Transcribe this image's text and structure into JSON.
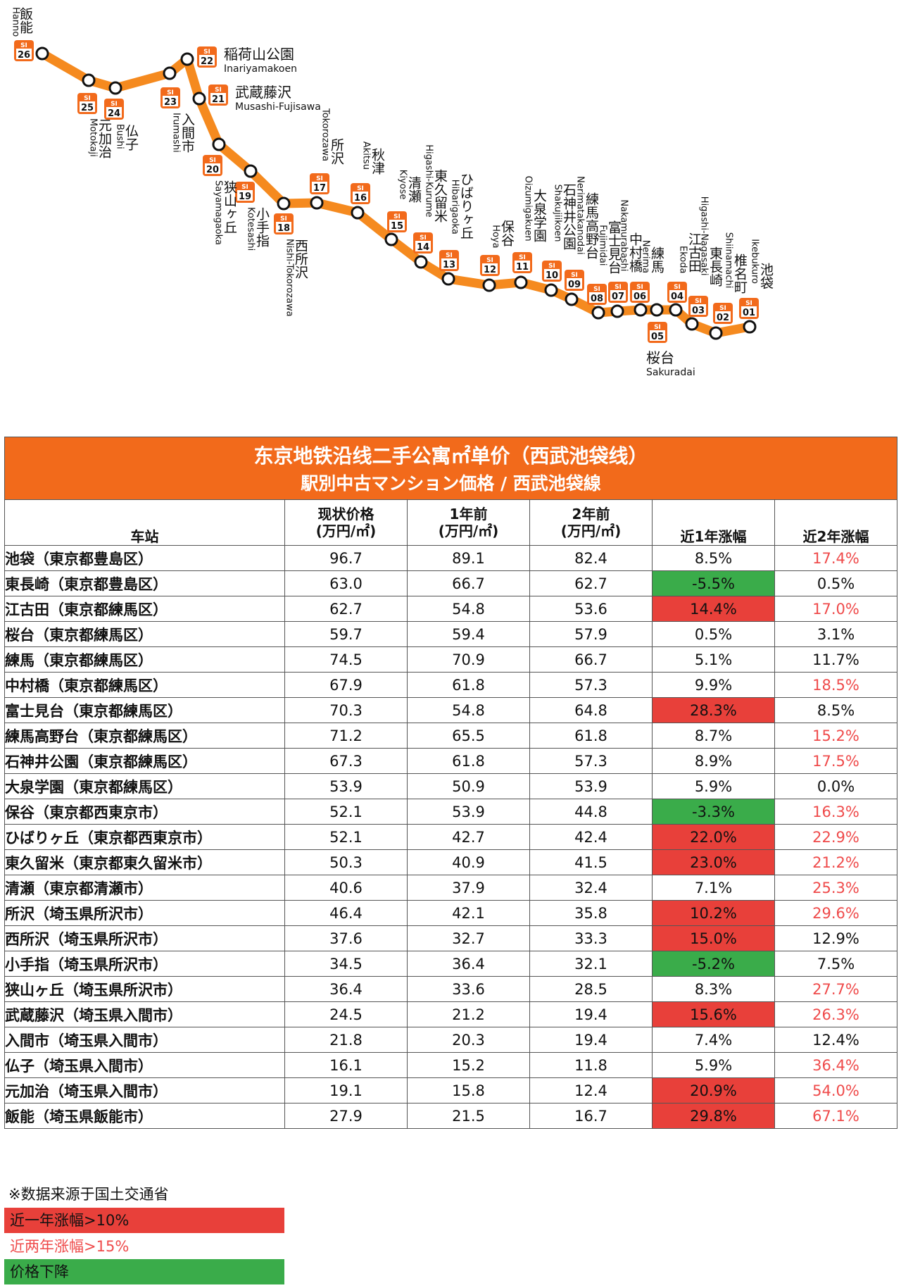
{
  "line_map": {
    "stations": [
      {
        "code": "SI",
        "num": "01",
        "name": "池袋",
        "romaji": "Ikebukuro"
      },
      {
        "code": "SI",
        "num": "02",
        "name": "椎名町",
        "romaji": "Shiinamachi"
      },
      {
        "code": "SI",
        "num": "03",
        "name": "東長崎",
        "romaji": "Higashi-Nagasaki"
      },
      {
        "code": "SI",
        "num": "04",
        "name": "江古田",
        "romaji": "Ekoda"
      },
      {
        "code": "SI",
        "num": "05",
        "name": "桜台",
        "romaji": "Sakuradai"
      },
      {
        "code": "SI",
        "num": "06",
        "name": "練馬",
        "romaji": "Nerima"
      },
      {
        "code": "SI",
        "num": "07",
        "name": "中村橋",
        "romaji": "Nakamurabashi"
      },
      {
        "code": "SI",
        "num": "08",
        "name": "富士見台",
        "romaji": "Fujimidai"
      },
      {
        "code": "SI",
        "num": "09",
        "name": "練馬高野台",
        "romaji": "Nerimatakanodai"
      },
      {
        "code": "SI",
        "num": "10",
        "name": "石神井公園",
        "romaji": "Shakujiikoen"
      },
      {
        "code": "SI",
        "num": "11",
        "name": "大泉学園",
        "romaji": "Oizumigakuen"
      },
      {
        "code": "SI",
        "num": "12",
        "name": "保谷",
        "romaji": "Hoya"
      },
      {
        "code": "SI",
        "num": "13",
        "name": "ひばりヶ丘",
        "romaji": "Hibarigaoka"
      },
      {
        "code": "SI",
        "num": "14",
        "name": "東久留米",
        "romaji": "Higashi-Kurume"
      },
      {
        "code": "SI",
        "num": "15",
        "name": "清瀬",
        "romaji": "Kiyose"
      },
      {
        "code": "SI",
        "num": "16",
        "name": "秋津",
        "romaji": "Akitsu"
      },
      {
        "code": "SI",
        "num": "17",
        "name": "所沢",
        "romaji": "Tokorozawa"
      },
      {
        "code": "SI",
        "num": "18",
        "name": "西所沢",
        "romaji": "Nishi-Tokorozawa"
      },
      {
        "code": "SI",
        "num": "19",
        "name": "小手指",
        "romaji": "Kotesashi"
      },
      {
        "code": "SI",
        "num": "20",
        "name": "狭山ヶ丘",
        "romaji": "Sayamagaoka"
      },
      {
        "code": "SI",
        "num": "21",
        "name": "武蔵藤沢",
        "romaji": "Musashi-Fujisawa"
      },
      {
        "code": "SI",
        "num": "22",
        "name": "稲荷山公園",
        "romaji": "Inariyamakoen"
      },
      {
        "code": "SI",
        "num": "23",
        "name": "入間市",
        "romaji": "Irumashi"
      },
      {
        "code": "SI",
        "num": "24",
        "name": "仏子",
        "romaji": "Bushi"
      },
      {
        "code": "SI",
        "num": "25",
        "name": "元加治",
        "romaji": "Motokaji"
      },
      {
        "code": "SI",
        "num": "26",
        "name": "飯能",
        "romaji": "Hanno"
      }
    ],
    "colors": {
      "line": "#f58a1f",
      "badge": "#f26a1b"
    }
  },
  "table": {
    "title_cn": "东京地铁沿线二手公寓㎡单价（西武池袋线）",
    "title_jp": "駅別中古マンション価格 / 西武池袋線",
    "headers": {
      "station": "车站",
      "current": "现状价格\n(万円/㎡)",
      "y1": "1年前\n(万円/㎡)",
      "y2": "2年前\n(万円/㎡)",
      "chg1": "近1年涨幅",
      "chg2": "近2年涨幅"
    },
    "rows": [
      {
        "station": "池袋（東京都豊島区）",
        "current": "96.7",
        "y1": "89.1",
        "y2": "82.4",
        "chg1": "8.5%",
        "chg2": "17.4%",
        "hl1": "none",
        "hl2": "red-text"
      },
      {
        "station": "東長崎（東京都豊島区）",
        "current": "63.0",
        "y1": "66.7",
        "y2": "62.7",
        "chg1": "-5.5%",
        "chg2": "0.5%",
        "hl1": "green",
        "hl2": "none"
      },
      {
        "station": "江古田（東京都練馬区）",
        "current": "62.7",
        "y1": "54.8",
        "y2": "53.6",
        "chg1": "14.4%",
        "chg2": "17.0%",
        "hl1": "red",
        "hl2": "red-text"
      },
      {
        "station": "桜台（東京都練馬区）",
        "current": "59.7",
        "y1": "59.4",
        "y2": "57.9",
        "chg1": "0.5%",
        "chg2": "3.1%",
        "hl1": "none",
        "hl2": "none"
      },
      {
        "station": "練馬（東京都練馬区）",
        "current": "74.5",
        "y1": "70.9",
        "y2": "66.7",
        "chg1": "5.1%",
        "chg2": "11.7%",
        "hl1": "none",
        "hl2": "none"
      },
      {
        "station": "中村橋（東京都練馬区）",
        "current": "67.9",
        "y1": "61.8",
        "y2": "57.3",
        "chg1": "9.9%",
        "chg2": "18.5%",
        "hl1": "none",
        "hl2": "red-text"
      },
      {
        "station": "富士見台（東京都練馬区）",
        "current": "70.3",
        "y1": "54.8",
        "y2": "64.8",
        "chg1": "28.3%",
        "chg2": "8.5%",
        "hl1": "red",
        "hl2": "none"
      },
      {
        "station": "練馬高野台（東京都練馬区）",
        "current": "71.2",
        "y1": "65.5",
        "y2": "61.8",
        "chg1": "8.7%",
        "chg2": "15.2%",
        "hl1": "none",
        "hl2": "red-text"
      },
      {
        "station": "石神井公園（東京都練馬区）",
        "current": "67.3",
        "y1": "61.8",
        "y2": "57.3",
        "chg1": "8.9%",
        "chg2": "17.5%",
        "hl1": "none",
        "hl2": "red-text"
      },
      {
        "station": "大泉学園（東京都練馬区）",
        "current": "53.9",
        "y1": "50.9",
        "y2": "53.9",
        "chg1": "5.9%",
        "chg2": "0.0%",
        "hl1": "none",
        "hl2": "none"
      },
      {
        "station": "保谷（東京都西東京市）",
        "current": "52.1",
        "y1": "53.9",
        "y2": "44.8",
        "chg1": "-3.3%",
        "chg2": "16.3%",
        "hl1": "green",
        "hl2": "red-text"
      },
      {
        "station": "ひばりヶ丘（東京都西東京市）",
        "current": "52.1",
        "y1": "42.7",
        "y2": "42.4",
        "chg1": "22.0%",
        "chg2": "22.9%",
        "hl1": "red",
        "hl2": "red-text"
      },
      {
        "station": "東久留米（東京都東久留米市）",
        "current": "50.3",
        "y1": "40.9",
        "y2": "41.5",
        "chg1": "23.0%",
        "chg2": "21.2%",
        "hl1": "red",
        "hl2": "red-text"
      },
      {
        "station": "清瀬（東京都清瀬市）",
        "current": "40.6",
        "y1": "37.9",
        "y2": "32.4",
        "chg1": "7.1%",
        "chg2": "25.3%",
        "hl1": "none",
        "hl2": "red-text"
      },
      {
        "station": "所沢（埼玉県所沢市）",
        "current": "46.4",
        "y1": "42.1",
        "y2": "35.8",
        "chg1": "10.2%",
        "chg2": "29.6%",
        "hl1": "red",
        "hl2": "red-text"
      },
      {
        "station": "西所沢（埼玉県所沢市）",
        "current": "37.6",
        "y1": "32.7",
        "y2": "33.3",
        "chg1": "15.0%",
        "chg2": "12.9%",
        "hl1": "red",
        "hl2": "none"
      },
      {
        "station": "小手指（埼玉県所沢市）",
        "current": "34.5",
        "y1": "36.4",
        "y2": "32.1",
        "chg1": "-5.2%",
        "chg2": "7.5%",
        "hl1": "green",
        "hl2": "none"
      },
      {
        "station": "狭山ヶ丘（埼玉県所沢市）",
        "current": "36.4",
        "y1": "33.6",
        "y2": "28.5",
        "chg1": "8.3%",
        "chg2": "27.7%",
        "hl1": "none",
        "hl2": "red-text"
      },
      {
        "station": "武蔵藤沢（埼玉県入間市）",
        "current": "24.5",
        "y1": "21.2",
        "y2": "19.4",
        "chg1": "15.6%",
        "chg2": "26.3%",
        "hl1": "red",
        "hl2": "red-text"
      },
      {
        "station": "入間市（埼玉県入間市）",
        "current": "21.8",
        "y1": "20.3",
        "y2": "19.4",
        "chg1": "7.4%",
        "chg2": "12.4%",
        "hl1": "none",
        "hl2": "none"
      },
      {
        "station": "仏子（埼玉県入間市）",
        "current": "16.1",
        "y1": "15.2",
        "y2": "11.8",
        "chg1": "5.9%",
        "chg2": "36.4%",
        "hl1": "none",
        "hl2": "red-text"
      },
      {
        "station": "元加治（埼玉県入間市）",
        "current": "19.1",
        "y1": "15.8",
        "y2": "12.4",
        "chg1": "20.9%",
        "chg2": "54.0%",
        "hl1": "red",
        "hl2": "red-text"
      },
      {
        "station": "飯能（埼玉県飯能市）",
        "current": "27.9",
        "y1": "21.5",
        "y2": "16.7",
        "chg1": "29.8%",
        "chg2": "67.1%",
        "hl1": "red",
        "hl2": "red-text"
      }
    ],
    "colors": {
      "title_bg": "#f26a1b",
      "red": "#e8403a",
      "green": "#3aac4a",
      "red_text": "#ef4a4a"
    }
  },
  "legend": {
    "note": "※数据来源于国土交通省",
    "red_label": "近一年涨幅>10%",
    "red_text_label": "近两年涨幅>15%",
    "green_label": "价格下降"
  },
  "chart_data": {
    "type": "table",
    "title": "东京地铁沿线二手公寓㎡单价（西武池袋线）",
    "subtitle": "駅別中古マンション価格 / 西武池袋線",
    "columns": [
      "车站",
      "现状价格 (万円/㎡)",
      "1年前 (万円/㎡)",
      "2年前 (万円/㎡)",
      "近1年涨幅",
      "近2年涨幅"
    ],
    "categories": [
      "池袋",
      "東長崎",
      "江古田",
      "桜台",
      "練馬",
      "中村橋",
      "富士見台",
      "練馬高野台",
      "石神井公園",
      "大泉学園",
      "保谷",
      "ひばりヶ丘",
      "東久留米",
      "清瀬",
      "所沢",
      "西所沢",
      "小手指",
      "狭山ヶ丘",
      "武蔵藤沢",
      "入間市",
      "仏子",
      "元加治",
      "飯能"
    ],
    "series": [
      {
        "name": "现状价格",
        "values": [
          96.7,
          63.0,
          62.7,
          59.7,
          74.5,
          67.9,
          70.3,
          71.2,
          67.3,
          53.9,
          52.1,
          52.1,
          50.3,
          40.6,
          46.4,
          37.6,
          34.5,
          36.4,
          24.5,
          21.8,
          16.1,
          19.1,
          27.9
        ]
      },
      {
        "name": "1年前",
        "values": [
          89.1,
          66.7,
          54.8,
          59.4,
          70.9,
          61.8,
          54.8,
          65.5,
          61.8,
          50.9,
          53.9,
          42.7,
          40.9,
          37.9,
          42.1,
          32.7,
          36.4,
          33.6,
          21.2,
          20.3,
          15.2,
          15.8,
          21.5
        ]
      },
      {
        "name": "2年前",
        "values": [
          82.4,
          62.7,
          53.6,
          57.9,
          66.7,
          57.3,
          64.8,
          61.8,
          57.3,
          53.9,
          44.8,
          42.4,
          41.5,
          32.4,
          35.8,
          33.3,
          32.1,
          28.5,
          19.4,
          19.4,
          11.8,
          12.4,
          16.7
        ]
      },
      {
        "name": "近1年涨幅",
        "values": [
          8.5,
          -5.5,
          14.4,
          0.5,
          5.1,
          9.9,
          28.3,
          8.7,
          8.9,
          5.9,
          -3.3,
          22.0,
          23.0,
          7.1,
          10.2,
          15.0,
          -5.2,
          8.3,
          15.6,
          7.4,
          5.9,
          20.9,
          29.8
        ]
      },
      {
        "name": "近2年涨幅",
        "values": [
          17.4,
          0.5,
          17.0,
          3.1,
          11.7,
          18.5,
          8.5,
          15.2,
          17.5,
          0.0,
          16.3,
          22.9,
          21.2,
          25.3,
          29.6,
          12.9,
          7.5,
          27.7,
          26.3,
          12.4,
          36.4,
          54.0,
          67.1
        ]
      }
    ]
  }
}
